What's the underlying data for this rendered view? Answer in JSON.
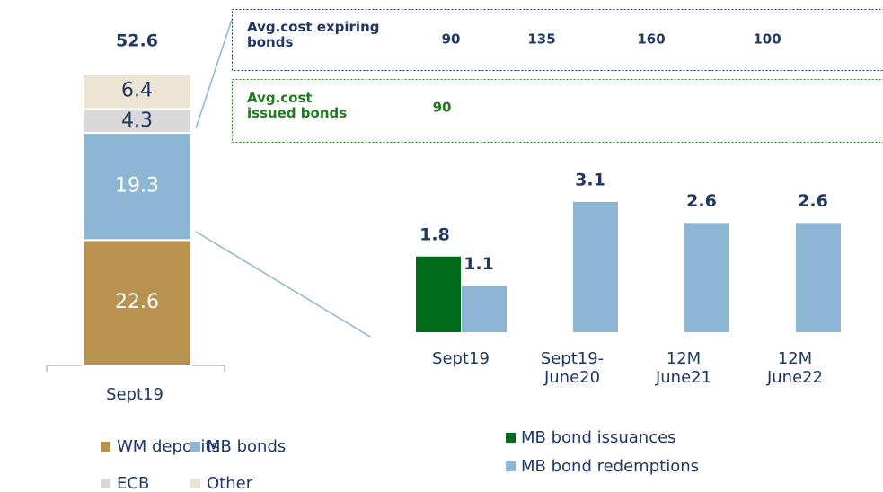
{
  "chart_data": [
    {
      "type": "stacked_bar",
      "categories": [
        "Sept19"
      ],
      "total": 52.6,
      "series": [
        {
          "name": "WM deposits",
          "color": "#b9924f",
          "label_color": "#ffffff",
          "values": [
            22.6
          ]
        },
        {
          "name": "MB bonds",
          "color": "#8cb6d3",
          "label_color": "#ffffff",
          "values": [
            19.3
          ]
        },
        {
          "name": "ECB",
          "color": "#d9d9d9",
          "label_color": "#1f3864",
          "values": [
            4.3
          ]
        },
        {
          "name": "Other",
          "color": "#ece5d4",
          "label_color": "#1f3864",
          "values": [
            6.4
          ]
        }
      ]
    },
    {
      "type": "grouped_bar",
      "categories": [
        "Sept19",
        "Sept19-\nJune20",
        "12M\nJune21",
        "12M\nJune22"
      ],
      "series": [
        {
          "name": "MB bond issuances",
          "color": "#006b1b",
          "values": [
            1.8,
            null,
            null,
            null
          ]
        },
        {
          "name": "MB bond redemptions",
          "color": "#8cb6d3",
          "values": [
            1.1,
            3.1,
            2.6,
            2.6
          ]
        }
      ]
    }
  ],
  "cost_boxes": [
    {
      "label": "Avg.cost expiring\nbonds",
      "color": "#1f3864",
      "values": [
        90,
        135,
        160,
        100
      ]
    },
    {
      "label": "Avg.cost\nissued bonds",
      "color": "#1e7b1e",
      "values": [
        90
      ]
    }
  ]
}
